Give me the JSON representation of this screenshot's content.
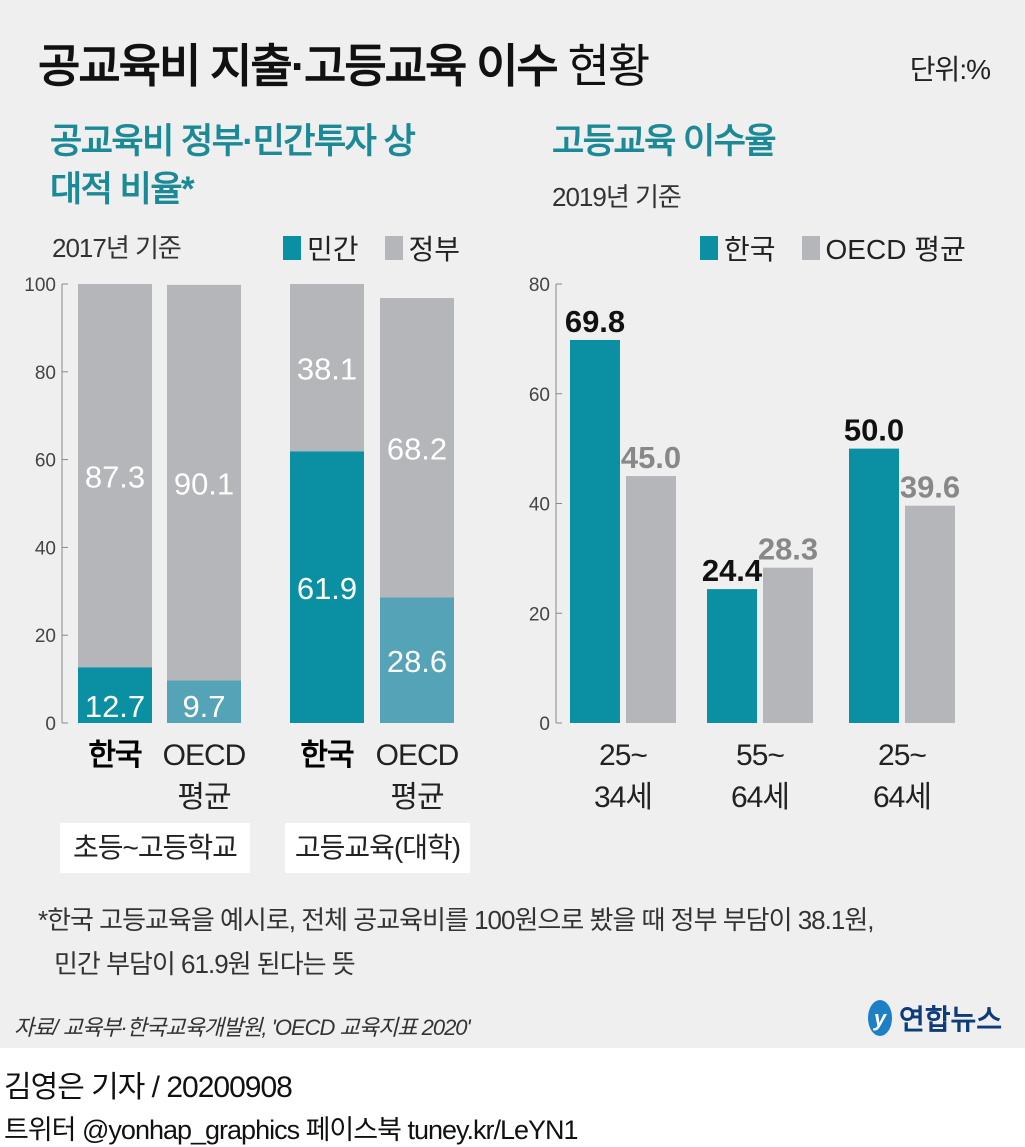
{
  "title_bold": "공교육비 지출·고등교육 이수",
  "title_light": "현황",
  "unit": "단위:%",
  "colors": {
    "teal": "#0b8fa3",
    "light_teal": "#55a3b6",
    "gray": "#b5b6b9",
    "title_teal": "#1b8a96"
  },
  "chart_data": [
    {
      "type": "bar",
      "stacked": true,
      "title": "공교육비 정부·민간투자 상대적 비율*",
      "subtitle": "2017년 기준",
      "legend": [
        "민간",
        "정부"
      ],
      "legend_placement": "top-right",
      "ylim": [
        0,
        100
      ],
      "yticks": [
        0,
        20,
        40,
        60,
        80,
        100
      ],
      "categories": [
        "한국",
        "OECD 평균",
        "한국",
        "OECD 평균"
      ],
      "category_lines": [
        [
          "한국"
        ],
        [
          "OECD",
          "평균"
        ],
        [
          "한국"
        ],
        [
          "OECD",
          "평균"
        ]
      ],
      "groups": [
        "초등~고등학교",
        "고등교육(대학)"
      ],
      "series": [
        {
          "name": "민간",
          "values": [
            12.7,
            9.7,
            61.9,
            28.6
          ]
        },
        {
          "name": "정부",
          "values": [
            87.3,
            90.1,
            38.1,
            68.2
          ]
        }
      ]
    },
    {
      "type": "bar",
      "title": "고등교육 이수율",
      "subtitle": "2019년 기준",
      "legend": [
        "한국",
        "OECD 평균"
      ],
      "legend_placement": "top-right",
      "ylim": [
        0,
        80
      ],
      "yticks": [
        0,
        20,
        40,
        60,
        80
      ],
      "categories": [
        "25~34세",
        "55~64세",
        "25~64세"
      ],
      "category_lines": [
        [
          "25~",
          "34세"
        ],
        [
          "55~",
          "64세"
        ],
        [
          "25~",
          "64세"
        ]
      ],
      "series": [
        {
          "name": "한국",
          "values": [
            69.8,
            24.4,
            50.0
          ]
        },
        {
          "name": "OECD 평균",
          "values": [
            45.0,
            28.3,
            39.6
          ]
        }
      ]
    }
  ],
  "footnote": [
    "*한국 고등교육을 예시로, 전체 공교육비를 100원으로 봤을 때 정부 부담이 38.1원,",
    "민간 부담이 61.9원 된다는 뜻"
  ],
  "source": "자료/ 교육부·한국교육개발원, 'OECD 교육지표 2020'",
  "logo_text": "연합뉴스",
  "byline": "김영은 기자 / 20200908",
  "social": "트위터 @yonhap_graphics  페이스북 tuney.kr/LeYN1"
}
